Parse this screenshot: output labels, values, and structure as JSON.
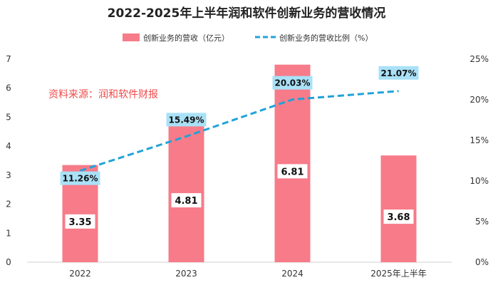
{
  "chart_data": {
    "type": "bar+line",
    "title": "2022-2025年上半年润和软件创新业务的营收情况",
    "categories": [
      "2022",
      "2023",
      "2024",
      "2025年上半年"
    ],
    "series": [
      {
        "name": "创新业务的营收（亿元）",
        "type": "bar",
        "axis": "left",
        "values": [
          3.35,
          4.81,
          6.81,
          3.68
        ],
        "labels": [
          "3.35",
          "4.81",
          "6.81",
          "3.68"
        ],
        "color": "#f77b89"
      },
      {
        "name": "创新业务的营收比例（%）",
        "type": "line",
        "axis": "right",
        "style": "dashed",
        "values": [
          11.26,
          15.49,
          20.03,
          21.07
        ],
        "labels": [
          "11.26%",
          "15.49%",
          "20.03%",
          "21.07%"
        ],
        "color": "#1fa3d8"
      }
    ],
    "y_left": {
      "min": 0,
      "max": 7,
      "ticks": [
        "0",
        "1",
        "2",
        "3",
        "4",
        "5",
        "6",
        "7"
      ]
    },
    "y_right": {
      "min": 0,
      "max": 25,
      "ticks": [
        "0%",
        "5%",
        "10%",
        "15%",
        "20%",
        "25%"
      ]
    },
    "annotation": "资料来源：润和软件财报",
    "label_bg_color": "#a9e1f7"
  }
}
